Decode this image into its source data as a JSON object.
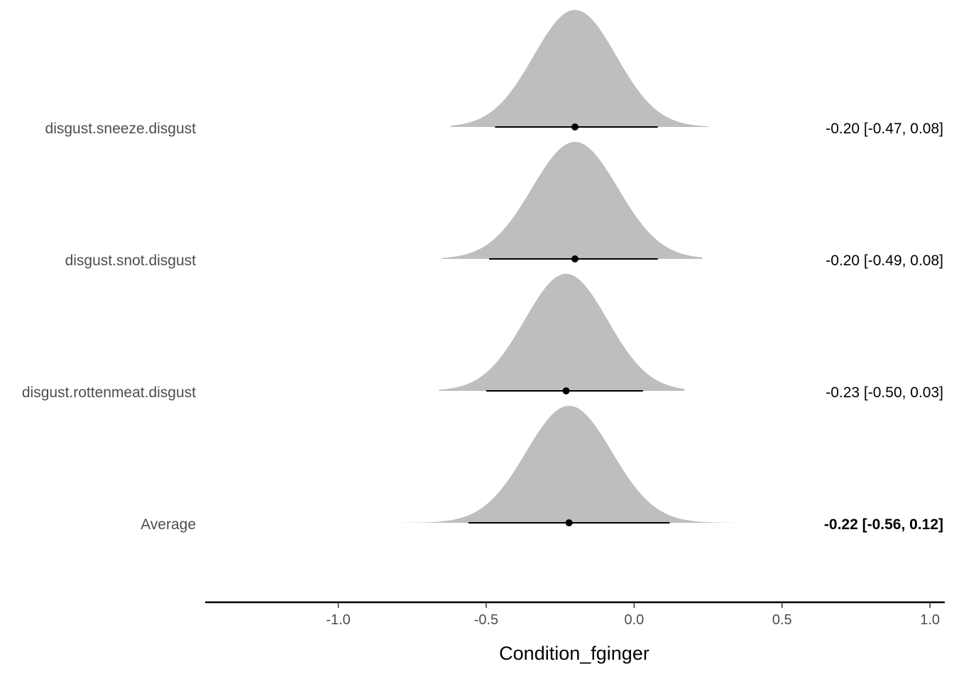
{
  "chart_data": {
    "type": "density",
    "title": "",
    "xlabel": "Condition_fginger",
    "ylabel": "",
    "xlim": [
      -1.45,
      1.05
    ],
    "x_ticks": [
      -1.0,
      -0.5,
      0.0,
      0.5,
      1.0
    ],
    "x_tick_labels": [
      "-1.0",
      "-0.5",
      "0.0",
      "0.5",
      "1.0"
    ],
    "grid": false,
    "fill_color": "#bebebe",
    "rows": [
      {
        "label": "disgust.sneeze.disgust",
        "estimate": -0.2,
        "ci_low": -0.47,
        "ci_high": 0.08,
        "dist_min": -0.62,
        "dist_max": 0.25,
        "sd": 0.14,
        "text": "-0.20 [-0.47, 0.08]",
        "bold": false
      },
      {
        "label": "disgust.snot.disgust",
        "estimate": -0.2,
        "ci_low": -0.49,
        "ci_high": 0.08,
        "dist_min": -0.65,
        "dist_max": 0.23,
        "sd": 0.145,
        "text": "-0.20 [-0.49, 0.08]",
        "bold": false
      },
      {
        "label": "disgust.rottenmeat.disgust",
        "estimate": -0.23,
        "ci_low": -0.5,
        "ci_high": 0.03,
        "dist_min": -0.66,
        "dist_max": 0.17,
        "sd": 0.14,
        "text": "-0.23 [-0.50, 0.03]",
        "bold": false
      },
      {
        "label": "Average",
        "estimate": -0.22,
        "ci_low": -0.56,
        "ci_high": 0.12,
        "dist_min": -0.79,
        "dist_max": 0.39,
        "sd": 0.145,
        "text": "-0.22 [-0.56, 0.12]",
        "bold": true
      }
    ]
  }
}
